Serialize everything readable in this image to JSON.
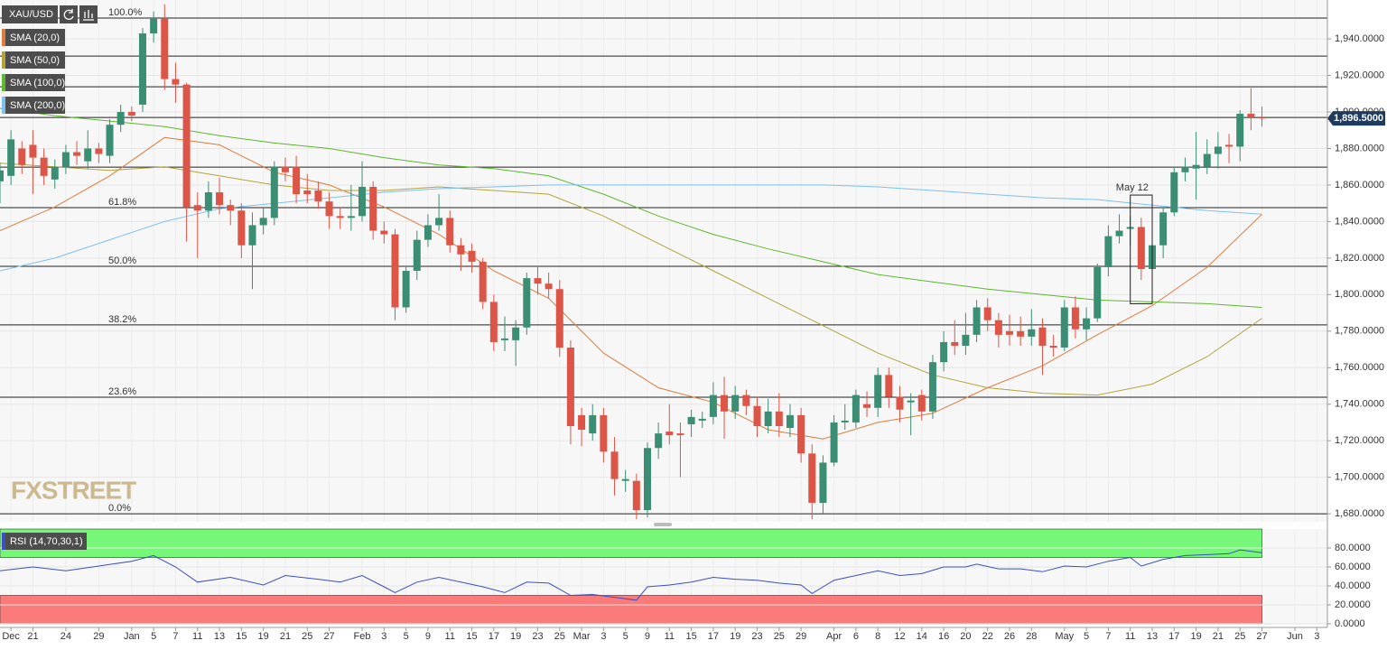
{
  "chart_data": [
    {
      "type": "candlestick",
      "symbol": "XAU/USD",
      "watermark": "FXSTREET",
      "up_color": "#3b8e74",
      "down_color": "#dd5546",
      "grid": true,
      "xlim": [
        0,
        120.8
      ],
      "ylim": [
        1675.6,
        1961.3
      ],
      "xticks": [
        {
          "value": 1,
          "label": "Dec"
        },
        {
          "value": 3,
          "label": "21"
        },
        {
          "value": 6,
          "label": "24"
        },
        {
          "value": 9,
          "label": "29"
        },
        {
          "value": 12,
          "label": "Jan"
        },
        {
          "value": 14,
          "label": "5"
        },
        {
          "value": 16,
          "label": "7"
        },
        {
          "value": 18,
          "label": "11"
        },
        {
          "value": 20,
          "label": "13"
        },
        {
          "value": 22,
          "label": "15"
        },
        {
          "value": 24,
          "label": "19"
        },
        {
          "value": 26,
          "label": "21"
        },
        {
          "value": 28,
          "label": "25"
        },
        {
          "value": 30,
          "label": "27"
        },
        {
          "value": 33,
          "label": "Feb"
        },
        {
          "value": 35,
          "label": "3"
        },
        {
          "value": 37,
          "label": "5"
        },
        {
          "value": 39,
          "label": "9"
        },
        {
          "value": 41,
          "label": "11"
        },
        {
          "value": 43,
          "label": "15"
        },
        {
          "value": 45,
          "label": "17"
        },
        {
          "value": 47,
          "label": "19"
        },
        {
          "value": 49,
          "label": "23"
        },
        {
          "value": 51,
          "label": "25"
        },
        {
          "value": 53,
          "label": "Mar"
        },
        {
          "value": 55,
          "label": "3"
        },
        {
          "value": 57,
          "label": "5"
        },
        {
          "value": 59,
          "label": "9"
        },
        {
          "value": 61,
          "label": "11"
        },
        {
          "value": 63,
          "label": "15"
        },
        {
          "value": 65,
          "label": "17"
        },
        {
          "value": 67,
          "label": "19"
        },
        {
          "value": 69,
          "label": "23"
        },
        {
          "value": 71,
          "label": "25"
        },
        {
          "value": 73,
          "label": "29"
        },
        {
          "value": 76,
          "label": "Apr"
        },
        {
          "value": 78,
          "label": "6"
        },
        {
          "value": 80,
          "label": "8"
        },
        {
          "value": 82,
          "label": "12"
        },
        {
          "value": 84,
          "label": "14"
        },
        {
          "value": 86,
          "label": "16"
        },
        {
          "value": 88,
          "label": "20"
        },
        {
          "value": 90,
          "label": "22"
        },
        {
          "value": 92,
          "label": "26"
        },
        {
          "value": 94,
          "label": "28"
        },
        {
          "value": 97,
          "label": "May"
        },
        {
          "value": 99,
          "label": "5"
        },
        {
          "value": 101,
          "label": "7"
        },
        {
          "value": 103,
          "label": "11"
        },
        {
          "value": 105,
          "label": "13"
        },
        {
          "value": 107,
          "label": "17"
        },
        {
          "value": 109,
          "label": "19"
        },
        {
          "value": 111,
          "label": "21"
        },
        {
          "value": 113,
          "label": "25"
        },
        {
          "value": 115,
          "label": "27"
        },
        {
          "value": 118,
          "label": "Jun"
        },
        {
          "value": 120,
          "label": "3"
        }
      ],
      "yticks": [
        {
          "value": 1680,
          "label": "1,680.0000"
        },
        {
          "value": 1700,
          "label": "1,700.0000"
        },
        {
          "value": 1720,
          "label": "1,720.0000"
        },
        {
          "value": 1740,
          "label": "1,740.0000"
        },
        {
          "value": 1760,
          "label": "1,760.0000"
        },
        {
          "value": 1780,
          "label": "1,780.0000"
        },
        {
          "value": 1800,
          "label": "1,800.0000"
        },
        {
          "value": 1820,
          "label": "1,820.0000"
        },
        {
          "value": 1840,
          "label": "1,840.0000"
        },
        {
          "value": 1860,
          "label": "1,860.0000"
        },
        {
          "value": 1880,
          "label": "1,880.0000"
        },
        {
          "value": 1900,
          "label": "1,900.0000"
        },
        {
          "value": 1920,
          "label": "1,920.0000"
        },
        {
          "value": 1940,
          "label": "1,940.0000"
        }
      ],
      "open": [
        1862,
        1865,
        1880,
        1882,
        1875,
        1863,
        1870,
        1878,
        1873,
        1880,
        1876,
        1893,
        1900,
        1904,
        1943,
        1951,
        1918,
        1915,
        1849,
        1846,
        1856,
        1849,
        1846,
        1827,
        1838,
        1842,
        1870,
        1870,
        1857,
        1857,
        1851,
        1843,
        1842,
        1843,
        1859,
        1835,
        1833,
        1793,
        1813,
        1830,
        1838,
        1842,
        1827,
        1824,
        1818,
        1796,
        1775,
        1775,
        1782,
        1809,
        1806,
        1803,
        1771,
        1734,
        1724,
        1734,
        1714,
        1698,
        1698,
        1682,
        1716,
        1725,
        1724,
        1729,
        1731,
        1733,
        1745,
        1736,
        1745,
        1739,
        1728,
        1736,
        1727,
        1734,
        1713,
        1686,
        1708,
        1730,
        1730,
        1740,
        1738,
        1756,
        1744,
        1741,
        1745,
        1736,
        1763,
        1774,
        1772,
        1778,
        1793,
        1786,
        1780,
        1780,
        1777,
        1782,
        1772,
        1771,
        1793,
        1781,
        1787,
        1815,
        1832,
        1836,
        1837,
        1814,
        1827,
        1845,
        1867,
        1869,
        1870,
        1877,
        1882,
        1881,
        1899,
        1897
      ],
      "high": [
        1872,
        1890,
        1884,
        1890,
        1880,
        1874,
        1882,
        1884,
        1890,
        1883,
        1896,
        1904,
        1903,
        1946,
        1955,
        1959,
        1927,
        1916,
        1856,
        1862,
        1864,
        1852,
        1850,
        1845,
        1848,
        1873,
        1875,
        1876,
        1866,
        1862,
        1856,
        1848,
        1860,
        1873,
        1862,
        1840,
        1836,
        1815,
        1835,
        1844,
        1855,
        1846,
        1831,
        1828,
        1820,
        1800,
        1788,
        1786,
        1812,
        1815,
        1812,
        1808,
        1775,
        1738,
        1740,
        1738,
        1722,
        1704,
        1702,
        1719,
        1730,
        1740,
        1730,
        1737,
        1736,
        1752,
        1755,
        1750,
        1748,
        1744,
        1743,
        1746,
        1740,
        1738,
        1718,
        1712,
        1734,
        1740,
        1748,
        1747,
        1760,
        1760,
        1750,
        1746,
        1748,
        1767,
        1780,
        1786,
        1790,
        1797,
        1798,
        1790,
        1789,
        1788,
        1792,
        1787,
        1778,
        1797,
        1799,
        1793,
        1817,
        1838,
        1844,
        1843,
        1842,
        1832,
        1848,
        1870,
        1875,
        1889,
        1885,
        1889,
        1888,
        1901,
        1913,
        1903
      ],
      "low": [
        1850,
        1860,
        1866,
        1855,
        1860,
        1858,
        1866,
        1871,
        1869,
        1872,
        1872,
        1889,
        1895,
        1900,
        1938,
        1912,
        1905,
        1829,
        1820,
        1842,
        1844,
        1838,
        1820,
        1803,
        1833,
        1838,
        1862,
        1850,
        1850,
        1847,
        1836,
        1836,
        1835,
        1840,
        1830,
        1828,
        1786,
        1790,
        1808,
        1826,
        1835,
        1823,
        1813,
        1812,
        1792,
        1769,
        1769,
        1761,
        1778,
        1800,
        1798,
        1766,
        1718,
        1717,
        1720,
        1708,
        1690,
        1692,
        1677,
        1678,
        1710,
        1718,
        1700,
        1722,
        1727,
        1729,
        1721,
        1732,
        1734,
        1722,
        1724,
        1722,
        1722,
        1708,
        1677,
        1680,
        1706,
        1726,
        1727,
        1733,
        1733,
        1738,
        1730,
        1723,
        1731,
        1732,
        1758,
        1767,
        1767,
        1774,
        1780,
        1771,
        1772,
        1772,
        1772,
        1756,
        1766,
        1769,
        1776,
        1775,
        1785,
        1810,
        1828,
        1827,
        1808,
        1812,
        1820,
        1843,
        1862,
        1852,
        1866,
        1869,
        1872,
        1873,
        1890,
        1892
      ],
      "close": [
        1868,
        1885,
        1871,
        1875,
        1865,
        1870,
        1878,
        1876,
        1880,
        1877,
        1893,
        1900,
        1898,
        1943,
        1951,
        1918,
        1915,
        1848,
        1846,
        1856,
        1849,
        1846,
        1827,
        1838,
        1842,
        1870,
        1867,
        1855,
        1855,
        1851,
        1843,
        1842,
        1843,
        1859,
        1835,
        1833,
        1793,
        1813,
        1830,
        1838,
        1842,
        1827,
        1822,
        1818,
        1796,
        1774,
        1776,
        1782,
        1809,
        1806,
        1803,
        1771,
        1728,
        1726,
        1734,
        1714,
        1699,
        1699,
        1682,
        1716,
        1724,
        1723,
        1723,
        1733,
        1732,
        1745,
        1736,
        1745,
        1739,
        1728,
        1736,
        1728,
        1734,
        1713,
        1686,
        1708,
        1730,
        1731,
        1745,
        1738,
        1756,
        1744,
        1737,
        1742,
        1736,
        1763,
        1774,
        1772,
        1778,
        1793,
        1786,
        1778,
        1778,
        1777,
        1781,
        1772,
        1771,
        1793,
        1781,
        1787,
        1815,
        1832,
        1835,
        1837,
        1814,
        1827,
        1845,
        1867,
        1870,
        1871,
        1877,
        1881,
        1881,
        1899,
        1897,
        1896.5
      ],
      "indicators": [
        {
          "name": "SMA (20,0)",
          "color": "#e07b39",
          "x": [
            0,
            5,
            10,
            15,
            20,
            25,
            30,
            35,
            40,
            45,
            50,
            55,
            60,
            65,
            70,
            75,
            80,
            85,
            90,
            95,
            100,
            105,
            110,
            115
          ],
          "values": [
            1835,
            1848,
            1865,
            1886,
            1882,
            1867,
            1860,
            1848,
            1833,
            1813,
            1798,
            1768,
            1749,
            1741,
            1726,
            1721,
            1730,
            1735,
            1749,
            1761,
            1778,
            1794,
            1815,
            1844
          ]
        },
        {
          "name": "SMA (50,0)",
          "color": "#b5a33a",
          "x": [
            0,
            5,
            10,
            15,
            20,
            25,
            30,
            35,
            40,
            45,
            50,
            55,
            60,
            65,
            70,
            75,
            80,
            85,
            90,
            95,
            100,
            105,
            110,
            115
          ],
          "values": [
            1872,
            1870,
            1868,
            1870,
            1865,
            1860,
            1857,
            1857,
            1859,
            1857,
            1855,
            1843,
            1828,
            1813,
            1798,
            1783,
            1768,
            1756,
            1749,
            1746,
            1745,
            1751,
            1766,
            1787
          ]
        },
        {
          "name": "SMA (100,0)",
          "color": "#5cb82e",
          "x": [
            0,
            5,
            10,
            15,
            20,
            25,
            30,
            35,
            40,
            45,
            50,
            55,
            60,
            65,
            70,
            75,
            80,
            85,
            90,
            95,
            100,
            105,
            110,
            115
          ],
          "values": [
            1902,
            1898,
            1895,
            1892,
            1887,
            1883,
            1880,
            1875,
            1871,
            1869,
            1865,
            1855,
            1843,
            1833,
            1825,
            1818,
            1811,
            1807,
            1803,
            1800,
            1797,
            1796,
            1795,
            1793
          ]
        },
        {
          "name": "SMA (200,0)",
          "color": "#7ec0ee",
          "x": [
            0,
            5,
            10,
            15,
            20,
            25,
            30,
            35,
            40,
            45,
            50,
            55,
            60,
            65,
            70,
            75,
            80,
            85,
            90,
            95,
            100,
            105,
            110,
            115
          ],
          "values": [
            1813,
            1820,
            1830,
            1840,
            1847,
            1850,
            1853,
            1856,
            1858,
            1859,
            1860,
            1860,
            1860,
            1860,
            1860,
            1860,
            1859,
            1857,
            1855,
            1853,
            1852,
            1849,
            1846,
            1844
          ]
        }
      ],
      "levels": [
        {
          "label": "100.0%",
          "value": 1951.4
        },
        {
          "label": "61.8%",
          "value": 1847.6
        },
        {
          "label": "50.0%",
          "value": 1815.5
        },
        {
          "label": "38.2%",
          "value": 1783.4
        },
        {
          "label": "23.6%",
          "value": 1743.8
        },
        {
          "label": "0.0%",
          "value": 1680
        }
      ],
      "lines": [
        1930.6,
        1913.8,
        1897,
        1869.8
      ],
      "annotation": {
        "text": "May 12",
        "x": [
          103,
          105
        ],
        "y": [
          1795,
          1854.5
        ]
      },
      "last_price": {
        "value": 1896.5,
        "label": "1,896.5000"
      }
    },
    {
      "type": "line",
      "title": "RSI (14,70,30,1)",
      "color": "#3a4fc1",
      "xlim": [
        0,
        120.8
      ],
      "ylim": [
        0,
        100
      ],
      "yticks": [
        {
          "value": 0,
          "label": "0.0000"
        },
        {
          "value": 20,
          "label": "20.0000"
        },
        {
          "value": 40,
          "label": "40.0000"
        },
        {
          "value": 60,
          "label": "60.0000"
        },
        {
          "value": 80,
          "label": "80.0000"
        }
      ],
      "zones": [
        {
          "from": 70,
          "to": 100,
          "color": "#77f777"
        },
        {
          "from": 0,
          "to": 30,
          "color": "#fb7b7b"
        }
      ],
      "x": [
        0,
        3,
        6,
        9,
        12,
        14,
        16,
        18,
        21,
        24,
        26,
        29,
        31,
        33,
        35,
        36,
        38,
        40,
        42,
        44,
        46,
        48,
        50,
        52,
        54,
        56,
        58,
        59,
        61,
        63,
        65,
        67,
        69,
        71,
        73,
        74,
        76,
        78,
        80,
        82,
        84,
        86,
        88,
        89,
        91,
        93,
        95,
        97,
        99,
        101,
        103,
        104,
        106,
        108,
        110,
        112,
        113,
        115
      ],
      "values": [
        56,
        60,
        56,
        61,
        66,
        72,
        60,
        44,
        49,
        41,
        51,
        47,
        44,
        51,
        39,
        33,
        44,
        49,
        44,
        39,
        33,
        44,
        43,
        30,
        31,
        28,
        25,
        39,
        41,
        44,
        49,
        47,
        46,
        43,
        41,
        32,
        46,
        51,
        56,
        51,
        53,
        60,
        60,
        63,
        58,
        58,
        55,
        61,
        60,
        66,
        70,
        61,
        68,
        72,
        73,
        74,
        78,
        75
      ]
    }
  ]
}
